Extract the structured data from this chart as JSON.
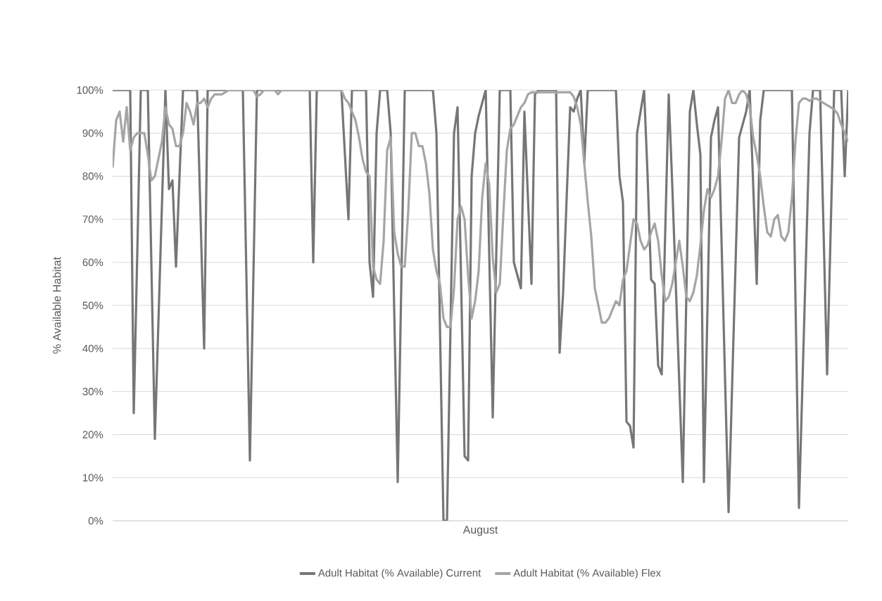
{
  "chart_data": {
    "type": "line",
    "xlabel": "August",
    "ylabel": "% Available Habitat",
    "categories": [
      null,
      null,
      null,
      null,
      null,
      null,
      null,
      null,
      null,
      null,
      null,
      null,
      null,
      null,
      null,
      null,
      null,
      null,
      null,
      null,
      null,
      null,
      null,
      null,
      null,
      null,
      null,
      null,
      null,
      null,
      null,
      null,
      null,
      null,
      null,
      null,
      null,
      null,
      null,
      null,
      null,
      null,
      null,
      null,
      null,
      null,
      null,
      null,
      null,
      null,
      null,
      null,
      null,
      null,
      null,
      null,
      null,
      null,
      null,
      null,
      null,
      null,
      null,
      null,
      null,
      null,
      null,
      null,
      null,
      null,
      null,
      null,
      null,
      null,
      null,
      null,
      null,
      null,
      null,
      null,
      null,
      null,
      null,
      null,
      null,
      null,
      null,
      null,
      null,
      null,
      null,
      null,
      null,
      null,
      null,
      null,
      null,
      null,
      null,
      null,
      null,
      null,
      null,
      null,
      null,
      null,
      null,
      null,
      null,
      null,
      null,
      null,
      null,
      null,
      null,
      null,
      null,
      null,
      null,
      null,
      null,
      null,
      null,
      null,
      null,
      null,
      null,
      null,
      null,
      null,
      null,
      null,
      null,
      null,
      null,
      null,
      null,
      null,
      null,
      null,
      null,
      null,
      null,
      null,
      null,
      null,
      null,
      null,
      null,
      null,
      null,
      null,
      null,
      null,
      null,
      null,
      null,
      null,
      null,
      null,
      null,
      null,
      null,
      null,
      null,
      null,
      null,
      null,
      null,
      null,
      null,
      null,
      null,
      null,
      null,
      null,
      null,
      null,
      null,
      null,
      null,
      null,
      null,
      null,
      null,
      null,
      null,
      null,
      null,
      null,
      null,
      null,
      null,
      null,
      null,
      null,
      null,
      null,
      null,
      null,
      null,
      null,
      null,
      null,
      null,
      null,
      null,
      null,
      null,
      null
    ],
    "series": [
      {
        "name": "Adult Habitat (% Available) Current",
        "color": "#767676",
        "values": [
          100,
          100,
          100,
          100,
          100,
          100,
          25,
          62,
          100,
          100,
          100,
          60,
          19,
          46,
          73,
          100,
          77,
          79,
          59,
          80,
          100,
          100,
          100,
          100,
          100,
          70,
          40,
          100,
          100,
          100,
          100,
          100,
          100,
          100,
          100,
          100,
          100,
          100,
          57,
          14,
          57,
          100,
          100,
          100,
          100,
          100,
          100,
          100,
          100,
          100,
          100,
          100,
          100,
          100,
          100,
          100,
          100,
          60,
          100,
          100,
          100,
          100,
          100,
          100,
          100,
          100,
          85,
          70,
          100,
          100,
          100,
          100,
          100,
          60,
          52,
          90,
          100,
          100,
          100,
          90,
          49,
          9,
          54,
          100,
          100,
          100,
          100,
          100,
          100,
          100,
          100,
          100,
          90,
          45,
          0,
          0,
          45,
          90,
          96,
          56,
          15,
          14,
          80,
          90,
          94,
          97,
          100,
          62,
          24,
          62,
          100,
          100,
          100,
          100,
          60,
          57,
          54,
          95,
          75,
          55,
          99,
          100,
          100,
          100,
          100,
          100,
          100,
          39,
          53,
          75,
          96,
          95,
          98,
          100,
          83,
          100,
          100,
          100,
          100,
          100,
          100,
          100,
          100,
          100,
          80,
          74,
          23,
          22,
          17,
          90,
          95,
          100,
          80,
          56,
          55,
          36,
          34,
          67,
          99,
          78,
          55,
          32,
          9,
          52,
          95,
          100,
          92,
          85,
          9,
          49,
          89,
          93,
          96,
          65,
          33,
          2,
          31,
          60,
          89,
          92,
          95,
          100,
          78,
          55,
          93,
          100,
          100,
          100,
          100,
          100,
          100,
          100,
          100,
          100,
          52,
          3,
          32,
          61,
          90,
          100,
          100,
          100,
          67,
          34,
          67,
          100,
          100,
          100,
          80,
          100
        ]
      },
      {
        "name": "Adult Habitat (% Available) Flex",
        "color": "#a5a5a5",
        "values": [
          82,
          93,
          95,
          88,
          96,
          86,
          89,
          90,
          90,
          90,
          85,
          79,
          80,
          84,
          88,
          96,
          92,
          91,
          87,
          87,
          90,
          97,
          95,
          92,
          97,
          97,
          98,
          96,
          98,
          99,
          99,
          99,
          99.5,
          100,
          100,
          100,
          100,
          100,
          100,
          100,
          100,
          98.5,
          99,
          100,
          100,
          100,
          100,
          99,
          100,
          100,
          100,
          100,
          100,
          100,
          100,
          100,
          100,
          100,
          100,
          100,
          100,
          100,
          100,
          100,
          100,
          100,
          98,
          97,
          95,
          93,
          89,
          84,
          81,
          80,
          59,
          56,
          55,
          65,
          86,
          89,
          67,
          62,
          59,
          59,
          72,
          90,
          90,
          87,
          87,
          83,
          76,
          63,
          58,
          55,
          47,
          45,
          45,
          54,
          70,
          73,
          70,
          57,
          47,
          51,
          58,
          75,
          83,
          78,
          61,
          53,
          55,
          71,
          86,
          91,
          92,
          94,
          96,
          97,
          99,
          99.5,
          99.5,
          99.5,
          99.5,
          99.5,
          99.5,
          99.5,
          99.5,
          99.5,
          99.5,
          99.5,
          99.5,
          98.5,
          96,
          92,
          83,
          74,
          66,
          54,
          50,
          46,
          46,
          47,
          49,
          51,
          50,
          56,
          58,
          64,
          70,
          69,
          65,
          63,
          64,
          67,
          69,
          65,
          57,
          51,
          52,
          55,
          60,
          65,
          59,
          52,
          51,
          53,
          57,
          64,
          72,
          77,
          75,
          77,
          80,
          88,
          98,
          100,
          97,
          97,
          99,
          100,
          99,
          96,
          89,
          85,
          80,
          73,
          67,
          66,
          70,
          71,
          66,
          65,
          67,
          75,
          88,
          97,
          98,
          98,
          97.5,
          98,
          98,
          97.5,
          97,
          96.5,
          96,
          95.5,
          94.5,
          92,
          90,
          88
        ]
      }
    ],
    "ylim": [
      0,
      100
    ],
    "yticks": [
      {
        "value": 0,
        "label": "0%"
      },
      {
        "value": 10,
        "label": "10%"
      },
      {
        "value": 20,
        "label": "20%"
      },
      {
        "value": 30,
        "label": "30%"
      },
      {
        "value": 40,
        "label": "40%"
      },
      {
        "value": 50,
        "label": "50%"
      },
      {
        "value": 60,
        "label": "60%"
      },
      {
        "value": 70,
        "label": "70%"
      },
      {
        "value": 80,
        "label": "80%"
      },
      {
        "value": 90,
        "label": "90%"
      },
      {
        "value": 100,
        "label": "100%"
      }
    ],
    "grid": "y",
    "legend": "bottom",
    "marker": "none",
    "line_style": "solid",
    "tick_labels": "y"
  }
}
